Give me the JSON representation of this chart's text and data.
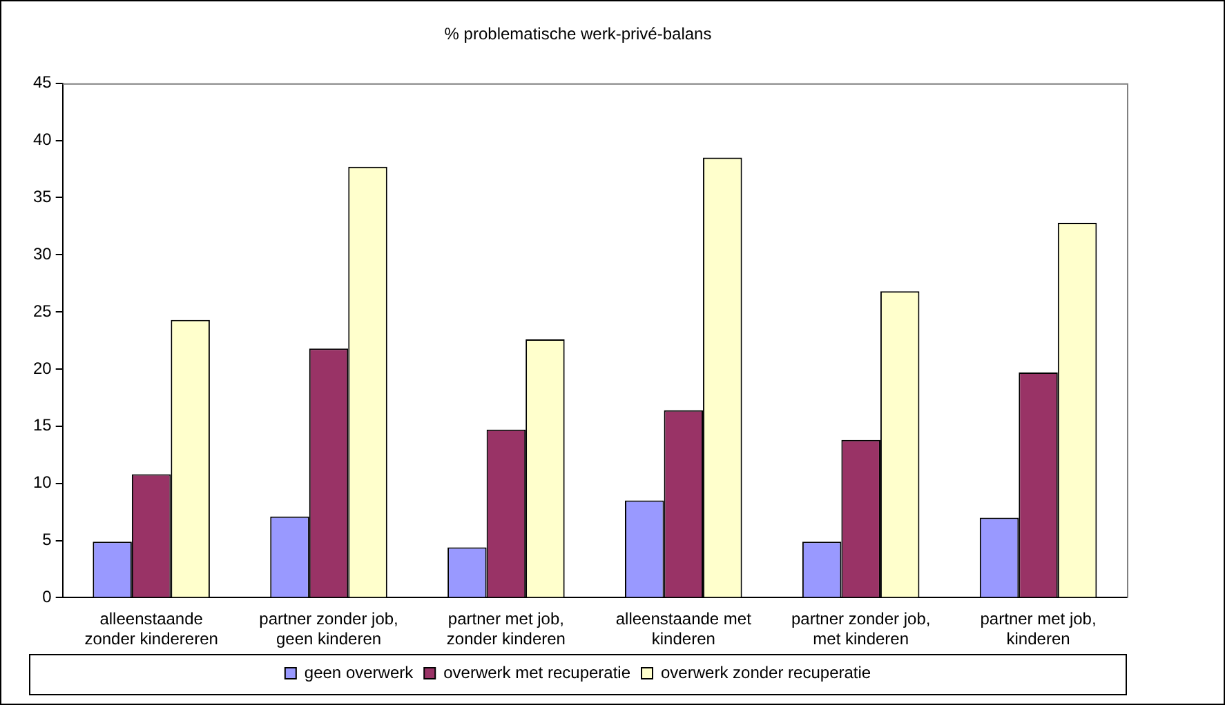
{
  "chart_data": {
    "type": "bar",
    "title": "% problematische werk-privé-balans",
    "categories": [
      "alleenstaande zonder kindereren",
      "partner zonder job, geen kinderen",
      "partner met job, zonder kinderen",
      "alleenstaande met kinderen",
      "partner zonder job, met kinderen",
      "partner met job, kinderen"
    ],
    "series": [
      {
        "name": "geen overwerk",
        "color": "#9999ff",
        "values": [
          4.9,
          7.1,
          4.4,
          8.5,
          4.9,
          7.0
        ]
      },
      {
        "name": "overwerk met recuperatie",
        "color": "#993366",
        "values": [
          10.8,
          21.8,
          14.7,
          16.4,
          13.8,
          19.7
        ]
      },
      {
        "name": "overwerk zonder recuperatie",
        "color": "#ffffcc",
        "values": [
          24.3,
          37.7,
          22.6,
          38.5,
          26.8,
          32.8
        ]
      }
    ],
    "ylim": [
      0,
      45
    ],
    "yticks": [
      0,
      5,
      10,
      15,
      20,
      25,
      30,
      35,
      40,
      45
    ],
    "grid": false,
    "legend": "bottom"
  }
}
